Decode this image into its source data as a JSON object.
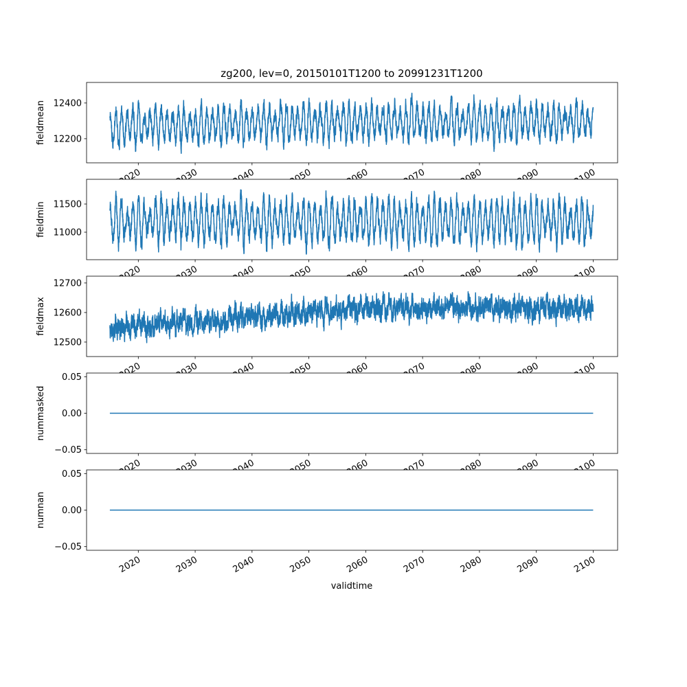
{
  "chart_data": {
    "type": "line",
    "title": "zg200, lev=0, 20150101T1200 to 20991231T1200",
    "xlabel": "validtime",
    "xlim": [
      2010.9,
      2104.3
    ],
    "x_range": [
      2015.0,
      2100.0
    ],
    "xticks": [
      2020,
      2030,
      2040,
      2050,
      2060,
      2070,
      2080,
      2090,
      2100
    ],
    "xtick_labels": [
      "2020",
      "2030",
      "2040",
      "2050",
      "2060",
      "2070",
      "2080",
      "2090",
      "2100"
    ],
    "color": "#1f77b4",
    "panels": [
      {
        "ylabel": "fieldmean",
        "ylim": [
          12065,
          12515
        ],
        "yticks": [
          12200,
          12400
        ],
        "ytick_labels": [
          "12200",
          "12400"
        ],
        "mean_start": 12265,
        "mean_end": 12295,
        "seasonal_amplitude": 85,
        "noise": 25,
        "seed": 11
      },
      {
        "ylabel": "fieldmin",
        "ylim": [
          10512,
          11939
        ],
        "yticks": [
          11000,
          11500
        ],
        "ytick_labels": [
          "11000",
          "11500"
        ],
        "mean_start": 11200,
        "mean_end": 11200,
        "seasonal_amplitude": 320,
        "noise": 90,
        "seed": 23
      },
      {
        "ylabel": "fieldmax",
        "ylim": [
          12451,
          12723
        ],
        "yticks": [
          12500,
          12600,
          12700
        ],
        "ytick_labels": [
          "12500",
          "12600",
          "12700"
        ],
        "mean_start": 12545,
        "mean_end": 12615,
        "seasonal_amplitude": 12,
        "noise": 22,
        "seed": 37
      },
      {
        "ylabel": "nummasked",
        "ylim": [
          -0.055,
          0.055
        ],
        "yticks": [
          -0.05,
          0.0,
          0.05
        ],
        "ytick_labels": [
          "−0.05",
          "0.00",
          "0.05"
        ],
        "mean_start": 0,
        "mean_end": 0,
        "seasonal_amplitude": 0,
        "noise": 0,
        "seed": 1
      },
      {
        "ylabel": "numnan",
        "ylim": [
          -0.055,
          0.055
        ],
        "yticks": [
          -0.05,
          0.0,
          0.05
        ],
        "ytick_labels": [
          "−0.05",
          "0.00",
          "0.05"
        ],
        "mean_start": 0,
        "mean_end": 0,
        "seasonal_amplitude": 0,
        "noise": 0,
        "seed": 2
      }
    ]
  }
}
